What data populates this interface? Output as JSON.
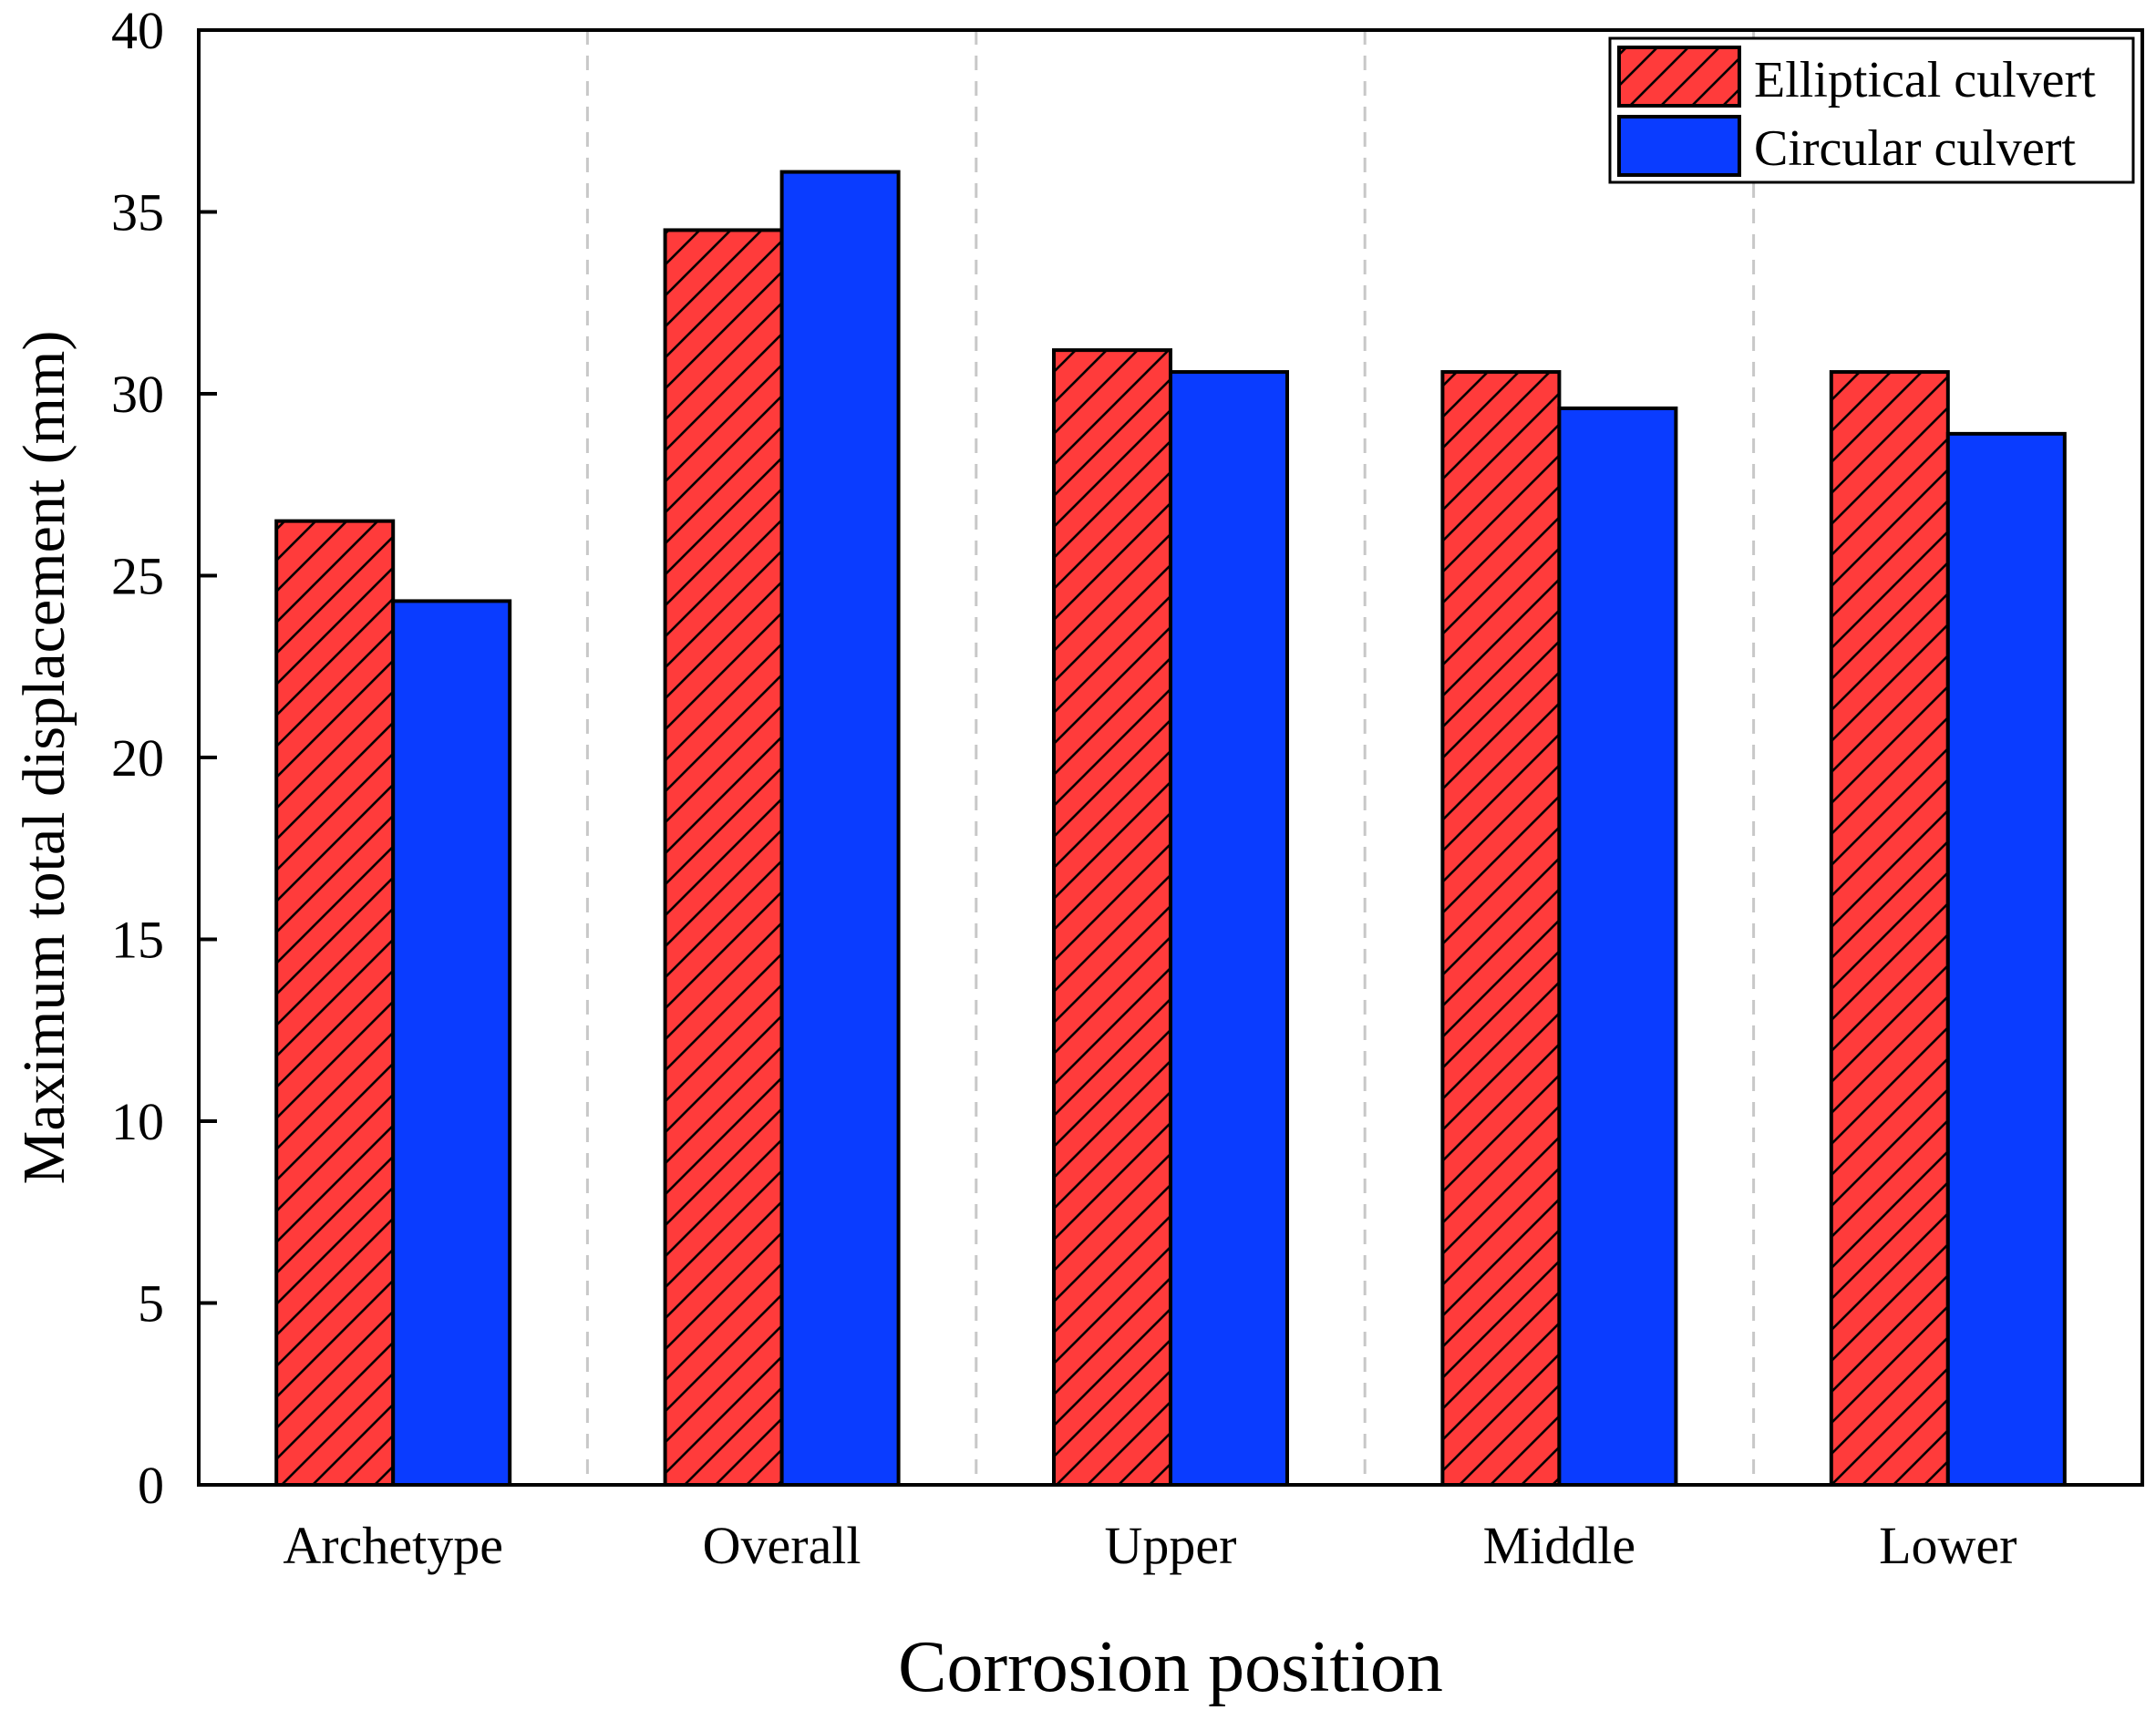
{
  "chart_data": {
    "type": "bar",
    "title": "",
    "xlabel": "Corrosion position",
    "ylabel": "Maximum total displacement (mm)",
    "ylim": [
      0,
      40
    ],
    "yticks": [
      0,
      5,
      10,
      15,
      20,
      25,
      30,
      35,
      40
    ],
    "categories": [
      "Archetype",
      "Overall",
      "Upper",
      "Middle",
      "Lower"
    ],
    "series": [
      {
        "name": "Elliptical culvert",
        "values": [
          26.5,
          34.5,
          31.2,
          30.6,
          30.6
        ],
        "color": "#ff3b3b",
        "pattern": "hatch"
      },
      {
        "name": "Circular culvert",
        "values": [
          24.3,
          36.1,
          30.6,
          29.6,
          28.9
        ],
        "color": "#0a3cff",
        "pattern": "solid"
      }
    ],
    "legend_position": "top-right",
    "category_separators": "dashed"
  }
}
